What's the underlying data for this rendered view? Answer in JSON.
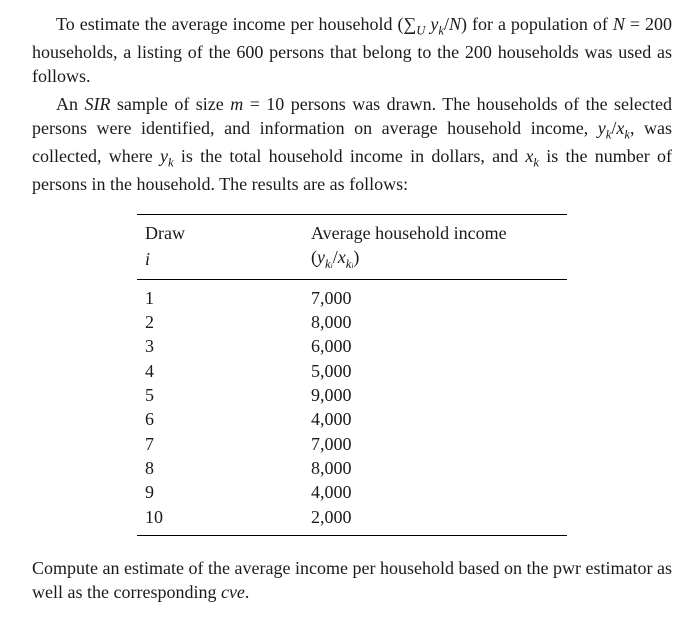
{
  "para1_html": "To estimate the average income per household (&sum;<sub><span class=\"italic\">U</span></sub>&nbsp;<span class=\"italic\">y<sub>k</sub></span>/<span class=\"italic\">N</span>) for a population of <span class=\"italic\">N</span> = 200 households, a listing of the 600 persons that belong to the 200 households was used as follows.",
  "para2_html": "An <span class=\"italic\">SIR</span> sample of size <span class=\"italic\">m</span> = 10 persons was drawn. The households of the selected persons were identified, and information on average household income, <span class=\"italic\">y<sub>k</sub></span>/<span class=\"italic\">x<sub>k</sub></span>, was collected, where <span class=\"italic\">y<sub>k</sub></span> is the total household income in dollars, and <span class=\"italic\">x<sub>k</sub></span> is the number of persons in the household. The results are as follows:",
  "table": {
    "head1_col1": "Draw",
    "head1_col2": "Average household income",
    "head2_col1_html": "<span class=\"italic\">i</span>",
    "head2_col2_html": "(<span class=\"italic\">y<sub>k<span class=\"sub2\">i</span></sub></span>/<span class=\"italic\">x<sub>k<span class=\"sub2\">i</span></sub></span>)",
    "rows": [
      {
        "i": "1",
        "v": "7,000"
      },
      {
        "i": "2",
        "v": "8,000"
      },
      {
        "i": "3",
        "v": "6,000"
      },
      {
        "i": "4",
        "v": "5,000"
      },
      {
        "i": "5",
        "v": "9,000"
      },
      {
        "i": "6",
        "v": "4,000"
      },
      {
        "i": "7",
        "v": "7,000"
      },
      {
        "i": "8",
        "v": "8,000"
      },
      {
        "i": "9",
        "v": "4,000"
      },
      {
        "i": "10",
        "v": "2,000"
      }
    ]
  },
  "para3_html": "Compute an estimate of the average income per household based on the pwr estimator as well as the corresponding <span class=\"italic\">cve</span>."
}
